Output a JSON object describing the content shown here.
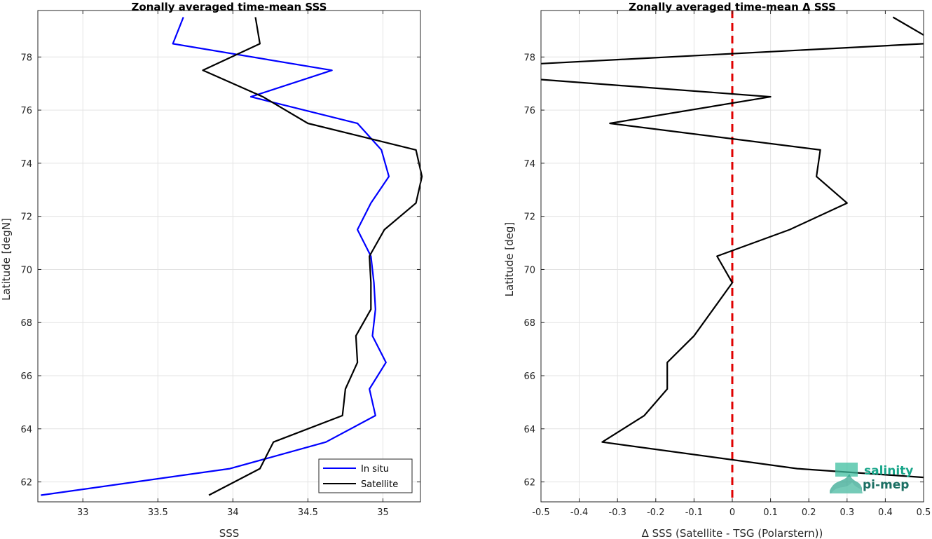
{
  "chart_data": [
    {
      "type": "line",
      "title": "Zonally averaged time-mean SSS",
      "xlabel": "SSS",
      "ylabel": "Latitude [degN]",
      "xlim": [
        32.7,
        35.25
      ],
      "ylim": [
        61.25,
        79.75
      ],
      "xticks": [
        "33",
        "33.5",
        "34",
        "34.5",
        "35"
      ],
      "yticks": [
        "62",
        "64",
        "66",
        "68",
        "70",
        "72",
        "74",
        "76",
        "78"
      ],
      "grid": true,
      "legend": "bottom-right",
      "series": [
        {
          "name": "In situ",
          "color": "#0000ff",
          "x": [
            33.67,
            33.6,
            34.66,
            34.12,
            34.83,
            34.99,
            35.04,
            34.92,
            34.83,
            34.92,
            34.94,
            34.95,
            34.93,
            35.02,
            34.91,
            34.95,
            34.62,
            33.98,
            32.72
          ],
          "y": [
            79.5,
            78.5,
            77.5,
            76.5,
            75.5,
            74.5,
            73.5,
            72.5,
            71.5,
            70.5,
            69.5,
            68.5,
            67.5,
            66.5,
            65.5,
            64.5,
            63.5,
            62.5,
            61.5
          ]
        },
        {
          "name": "Satellite",
          "color": "#000000",
          "x": [
            34.15,
            34.18,
            33.8,
            34.2,
            34.5,
            35.22,
            35.26,
            35.22,
            35.01,
            34.91,
            34.92,
            34.92,
            34.82,
            34.83,
            34.75,
            34.73,
            34.27,
            34.18,
            33.84
          ],
          "y": [
            79.5,
            78.5,
            77.5,
            76.5,
            75.5,
            74.5,
            73.5,
            72.5,
            71.5,
            70.5,
            69.5,
            68.5,
            67.5,
            66.5,
            65.5,
            64.5,
            63.5,
            62.5,
            61.5
          ]
        }
      ]
    },
    {
      "type": "line",
      "title": "Zonally averaged time-mean Δ SSS",
      "xlabel": "Δ SSS (Satellite - TSG (Polarstern))",
      "ylabel": "Latitude [deg]",
      "xlim": [
        -0.5,
        0.5
      ],
      "ylim": [
        61.25,
        79.75
      ],
      "xticks": [
        "-0.5",
        "-0.4",
        "-0.3",
        "-0.2",
        "-0.1",
        "0",
        "0.1",
        "0.2",
        "0.3",
        "0.4",
        "0.5"
      ],
      "yticks": [
        "62",
        "64",
        "66",
        "68",
        "70",
        "72",
        "74",
        "76",
        "78"
      ],
      "grid": true,
      "zero_line_color": "#e00000",
      "series": [
        {
          "color": "#000000",
          "x": [
            0.42,
            0.5
          ],
          "y": [
            79.5,
            78.83
          ]
        },
        {
          "color": "#000000",
          "x": [
            0.5,
            -0.5
          ],
          "y": [
            78.5,
            77.75
          ]
        },
        {
          "color": "#000000",
          "x": [
            -0.5,
            0.1,
            -0.32,
            0.23,
            0.22,
            0.3,
            0.15,
            -0.04,
            0.0,
            -0.05,
            -0.1,
            -0.17,
            -0.17,
            -0.23,
            -0.34,
            0.17,
            0.5
          ],
          "y": [
            77.15,
            76.5,
            75.5,
            74.5,
            73.5,
            72.5,
            71.5,
            70.5,
            69.5,
            68.5,
            67.5,
            66.5,
            65.5,
            64.5,
            63.5,
            62.5,
            62.17
          ]
        }
      ]
    }
  ],
  "logo": {
    "line1": "salinity",
    "line2": "pi-mep"
  }
}
